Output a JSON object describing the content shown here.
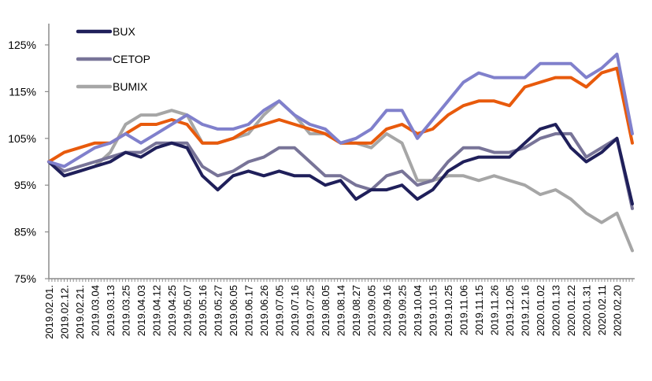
{
  "chart_data": {
    "type": "line",
    "title": "",
    "xlabel": "",
    "ylabel": "",
    "ylim": [
      75,
      130
    ],
    "yticks": [
      "75%",
      "85%",
      "95%",
      "105%",
      "115%",
      "125%"
    ],
    "ytick_values": [
      75,
      85,
      95,
      105,
      115,
      125
    ],
    "legend_position": "top-left",
    "x": [
      "2019.02.01.",
      "2019.02.12.",
      "2019.02.21.",
      "2019.03.04",
      "2019.03.13",
      "2019.03.25",
      "2019.04.03",
      "2019.04.12",
      "2019.04.25",
      "2019.05.07",
      "2019.05.16",
      "2019.05.27",
      "2019.06.05",
      "2019.06.17",
      "2019.06.26",
      "2019.07.05",
      "2019.07.16",
      "2019.07.25",
      "2019.08.05",
      "2019.08.14",
      "2019.08.27",
      "2019.09.05",
      "2019.09.16",
      "2019.09.25",
      "2019.10.04",
      "2019.10.15",
      "2019.10.25",
      "2019.11.06",
      "2019.11.15",
      "2019.11.26",
      "2019.12.05",
      "2019.12.16",
      "2020.01.02",
      "2020.01.13",
      "2020.01.22",
      "2020.01.31",
      "2020.02.11",
      "2020.02.20",
      ""
    ],
    "series": [
      {
        "name": "BUMIX",
        "legend": true,
        "color": "#a6a6a6",
        "values": [
          100,
          97,
          98,
          99,
          102,
          108,
          110,
          110,
          111,
          110,
          104,
          104,
          105,
          106,
          110,
          113,
          110,
          106,
          106,
          104,
          104,
          103,
          106,
          104,
          96,
          96,
          97,
          97,
          96,
          97,
          96,
          95,
          93,
          94,
          92,
          89,
          87,
          89,
          81
        ]
      },
      {
        "name": "CETOP",
        "legend": true,
        "color": "#787498",
        "values": [
          100,
          98,
          99,
          100,
          101,
          102,
          102,
          104,
          104,
          104,
          99,
          97,
          98,
          100,
          101,
          103,
          103,
          100,
          97,
          97,
          95,
          94,
          97,
          98,
          95,
          96,
          100,
          103,
          103,
          102,
          102,
          103,
          105,
          106,
          106,
          101,
          103,
          105,
          90
        ]
      },
      {
        "name": "BUX",
        "legend": true,
        "color": "#1f1f5a",
        "values": [
          100,
          97,
          98,
          99,
          100,
          102,
          101,
          103,
          104,
          103,
          97,
          94,
          97,
          98,
          97,
          98,
          97,
          97,
          95,
          96,
          92,
          94,
          94,
          95,
          92,
          94,
          98,
          100,
          101,
          101,
          101,
          104,
          107,
          108,
          103,
          100,
          102,
          105,
          91
        ]
      },
      {
        "name": "",
        "legend": false,
        "color": "#e85a0c",
        "values": [
          100,
          102,
          103,
          104,
          104,
          106,
          108,
          108,
          109,
          108,
          104,
          104,
          105,
          107,
          108,
          109,
          108,
          107,
          106,
          104,
          104,
          104,
          107,
          108,
          106,
          107,
          110,
          112,
          113,
          113,
          112,
          116,
          117,
          118,
          118,
          116,
          119,
          120,
          104
        ]
      },
      {
        "name": "",
        "legend": false,
        "color": "#8080cc",
        "values": [
          100,
          99,
          101,
          103,
          104,
          106,
          104,
          106,
          108,
          110,
          108,
          107,
          107,
          108,
          111,
          113,
          110,
          108,
          107,
          104,
          105,
          107,
          111,
          111,
          105,
          109,
          113,
          117,
          119,
          118,
          118,
          118,
          121,
          121,
          121,
          118,
          120,
          123,
          106
        ]
      }
    ],
    "legend": [
      {
        "label": "BUX",
        "color": "#1f1f5a"
      },
      {
        "label": "CETOP",
        "color": "#787498"
      },
      {
        "label": "BUMIX",
        "color": "#a6a6a6"
      }
    ]
  }
}
